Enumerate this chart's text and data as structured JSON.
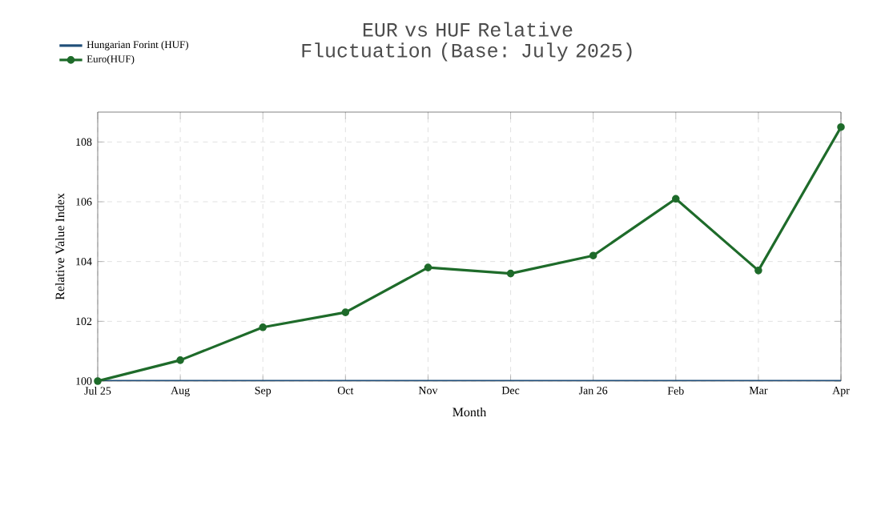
{
  "chart_data": {
    "type": "line",
    "title": "EUR vs HUF Relative Fluctuation (Base: July 2025)",
    "xlabel": "Month",
    "ylabel": "Relative Value Index",
    "categories": [
      "Jul 25",
      "Aug",
      "Sep",
      "Oct",
      "Nov",
      "Dec",
      "Jan 26",
      "Feb",
      "Mar",
      "Apr"
    ],
    "series": [
      {
        "name": "Hungarian Forint (HUF)",
        "color": "#1f4e79",
        "marker": "none",
        "values": [
          100,
          100,
          100,
          100,
          100,
          100,
          100,
          100,
          100,
          100
        ]
      },
      {
        "name": "Euro(HUF)",
        "color": "#1e6b2a",
        "marker": "circle",
        "values": [
          100,
          100.7,
          101.8,
          102.3,
          103.8,
          103.6,
          104.2,
          106.1,
          103.7,
          108.5
        ]
      }
    ],
    "ylim": [
      100,
      109
    ],
    "yticks": [
      100,
      102,
      104,
      106,
      108
    ],
    "grid": true,
    "legend": "top left",
    "line_style": "solid"
  }
}
